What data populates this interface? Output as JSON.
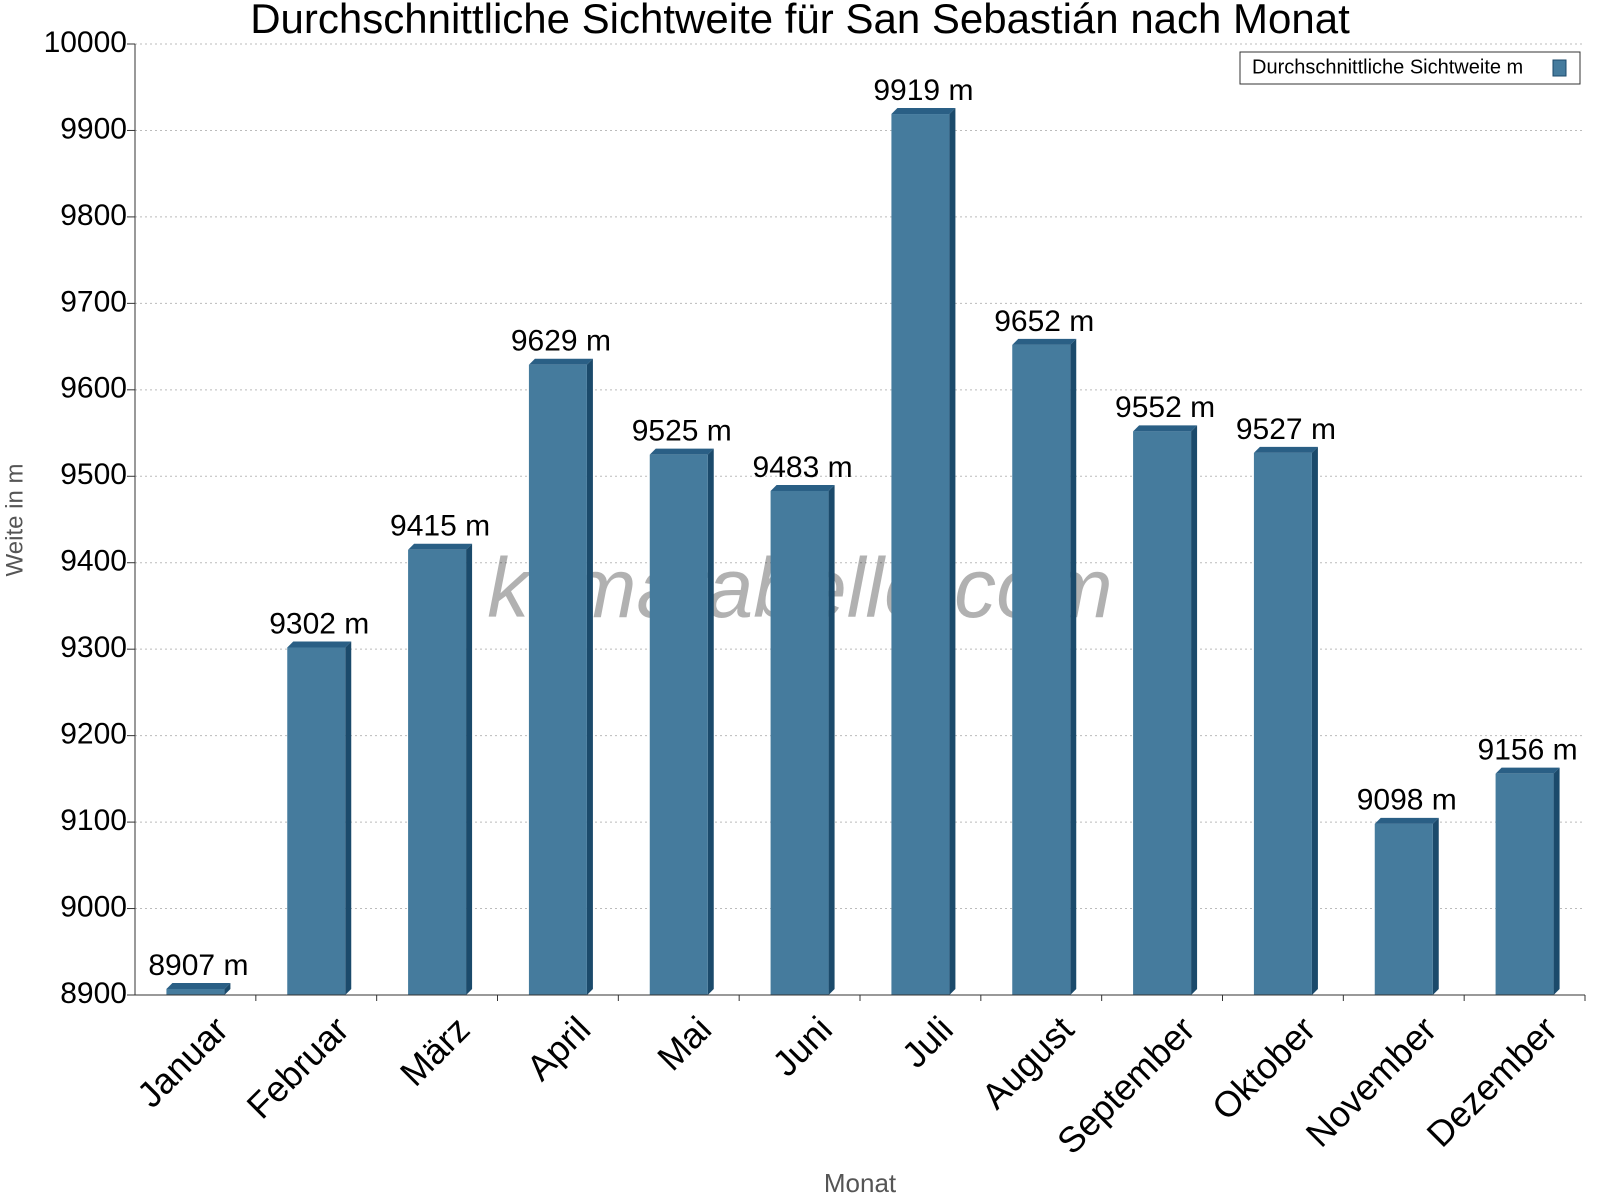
{
  "chart_data": {
    "type": "bar",
    "title": "Durchschnittliche Sichtweite für San Sebastián nach Monat",
    "x_label": "Monat",
    "y_label": "Weite in m",
    "watermark": "klimatabelle.com",
    "categories": [
      "Januar",
      "Februar",
      "März",
      "April",
      "Mai",
      "Juni",
      "Juli",
      "August",
      "September",
      "Oktober",
      "November",
      "Dezember"
    ],
    "series": [
      {
        "name": "Durchschnittliche Sichtweite m",
        "color": "#457b9d",
        "values": [
          8907,
          9302,
          9415,
          9629,
          9525,
          9483,
          9919,
          9652,
          9552,
          9527,
          9098,
          9156
        ],
        "value_labels": [
          "8907 m",
          "9302 m",
          "9415 m",
          "9629 m",
          "9525 m",
          "9483 m",
          "9919 m",
          "9652 m",
          "9552 m",
          "9527 m",
          "9098 m",
          "9156 m"
        ]
      }
    ],
    "ylim": [
      8900,
      10000
    ],
    "yticks": [
      8900,
      9000,
      9100,
      9200,
      9300,
      9400,
      9500,
      9600,
      9700,
      9800,
      9900,
      10000
    ],
    "grid": true,
    "legend": "top-right"
  }
}
